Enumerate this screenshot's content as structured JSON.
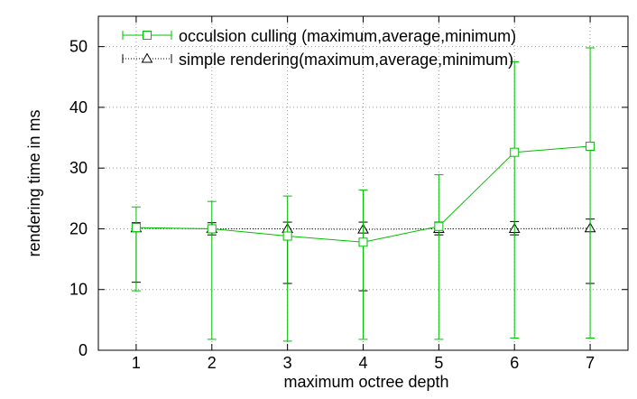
{
  "chart_data": {
    "type": "line",
    "title": "",
    "xlabel": "maximum octree depth",
    "ylabel": "rendering time in ms",
    "x": [
      1,
      2,
      3,
      4,
      5,
      6,
      7
    ],
    "xlim": [
      0.5,
      7.5
    ],
    "ylim": [
      0,
      55
    ],
    "xticks": [
      1,
      2,
      3,
      4,
      5,
      6,
      7
    ],
    "yticks": [
      0,
      10,
      20,
      30,
      40,
      50
    ],
    "grid": true,
    "legend_position": "top-right",
    "series": [
      {
        "name": "occulsion culling (maximum,average,minimum)",
        "color": "#00c000",
        "marker": "square",
        "line": "solid",
        "values": [
          20.2,
          20.0,
          18.8,
          17.8,
          20.4,
          32.6,
          33.6
        ],
        "max": [
          23.6,
          24.5,
          25.4,
          26.4,
          28.9,
          47.5,
          49.8
        ],
        "min": [
          9.8,
          1.8,
          1.5,
          1.8,
          1.8,
          2.0,
          2.0
        ]
      },
      {
        "name": "simple rendering(maximum,average,minimum)",
        "color": "#000000",
        "marker": "triangle",
        "line": "dotted",
        "values": [
          20.1,
          20.0,
          20.0,
          19.9,
          20.0,
          20.0,
          20.1
        ],
        "max": [
          21.0,
          21.0,
          21.1,
          21.1,
          21.1,
          21.2,
          21.6
        ],
        "min": [
          11.2,
          19.0,
          11.0,
          9.8,
          19.0,
          19.0,
          11.0
        ]
      }
    ]
  }
}
